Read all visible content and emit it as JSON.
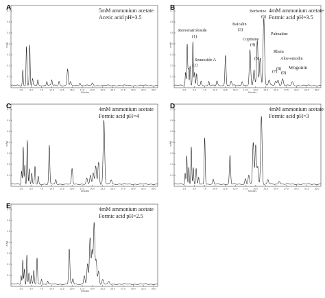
{
  "chart_data": [
    {
      "type": "line",
      "panel": "A",
      "conditions": [
        "5mM ammonium acetate",
        "Acetic acid pH=3.5"
      ],
      "xlabel": "Minutes",
      "ylabel": "mAU",
      "xlim": [
        0,
        36
      ],
      "ylim": [
        0,
        0.75
      ],
      "x_ticks": [
        "2.5",
        "5.0",
        "7.5",
        "10.0",
        "12.5",
        "15.0",
        "17.5",
        "20.0",
        "22.5",
        "25.0",
        "27.5",
        "30.0",
        "32.5",
        "35.0"
      ],
      "y_ticks": [
        "0.1",
        "0.2",
        "0.3",
        "0.4",
        "0.5",
        "0.6",
        "0.7"
      ],
      "peaks": [
        {
          "rt": 2.9,
          "h": 0.14
        },
        {
          "rt": 3.8,
          "h": 0.36
        },
        {
          "rt": 4.6,
          "h": 0.37
        },
        {
          "rt": 5.3,
          "h": 0.06
        },
        {
          "rt": 6.6,
          "h": 0.05
        },
        {
          "rt": 8.8,
          "h": 0.04
        },
        {
          "rt": 10.0,
          "h": 0.05
        },
        {
          "rt": 11.8,
          "h": 0.04
        },
        {
          "rt": 13.9,
          "h": 0.15
        },
        {
          "rt": 14.6,
          "h": 0.03
        },
        {
          "rt": 16.9,
          "h": 0.025
        },
        {
          "rt": 20.0,
          "h": 0.02
        }
      ],
      "peak_labels": []
    },
    {
      "type": "line",
      "panel": "B",
      "conditions": [
        "4mM ammonium acetate",
        "Formic acid pH=3.5"
      ],
      "xlabel": "Minutes",
      "ylabel": "mAU",
      "xlim": [
        0,
        36
      ],
      "ylim": [
        0,
        0.75
      ],
      "x_ticks": [
        "2.5",
        "5.0",
        "7.5",
        "10.0",
        "12.5",
        "15.0",
        "17.5",
        "20.0",
        "22.5",
        "25.0",
        "27.5",
        "30.0",
        "32.5",
        "35.0"
      ],
      "y_ticks": [
        "0.1",
        "0.2",
        "0.3",
        "0.4",
        "0.5",
        "0.6",
        "0.7"
      ],
      "peaks": [
        {
          "rt": 2.8,
          "h": 0.12
        },
        {
          "rt": 3.2,
          "h": 0.38
        },
        {
          "rt": 3.5,
          "h": 0.16
        },
        {
          "rt": 3.9,
          "h": 0.18
        },
        {
          "rt": 4.6,
          "h": 0.4
        },
        {
          "rt": 5.0,
          "h": 0.12
        },
        {
          "rt": 5.5,
          "h": 0.1
        },
        {
          "rt": 6.6,
          "h": 0.04
        },
        {
          "rt": 8.5,
          "h": 0.04
        },
        {
          "rt": 10.5,
          "h": 0.04
        },
        {
          "rt": 12.6,
          "h": 0.28
        },
        {
          "rt": 14.0,
          "h": 0.04
        },
        {
          "rt": 16.7,
          "h": 0.04
        },
        {
          "rt": 18.6,
          "h": 0.32
        },
        {
          "rt": 19.6,
          "h": 0.14
        },
        {
          "rt": 20.4,
          "h": 0.41
        },
        {
          "rt": 21.1,
          "h": 0.25
        },
        {
          "rt": 22.0,
          "h": 0.62
        },
        {
          "rt": 23.3,
          "h": 0.05
        },
        {
          "rt": 24.9,
          "h": 0.04
        },
        {
          "rt": 25.5,
          "h": 0.05
        },
        {
          "rt": 26.6,
          "h": 0.06
        },
        {
          "rt": 29.0,
          "h": 0.03
        }
      ],
      "peak_labels": [
        {
          "name": "Resveratroloside",
          "num": "(1)"
        },
        {
          "name": "Sennoside A",
          "num": "(2)"
        },
        {
          "name": "Baicalin",
          "num": "(3)"
        },
        {
          "name": "Coptisine",
          "num": "(4)"
        },
        {
          "name": "",
          "num": "(5)"
        },
        {
          "name": "Berberine",
          "num": "(6)"
        },
        {
          "name": "Palmatine",
          "num": ""
        },
        {
          "name": "Rhein",
          "num": "(7)"
        },
        {
          "name": "Aloe-emodin",
          "num": "(8)"
        },
        {
          "name": "Wogonin",
          "num": "(9)"
        }
      ]
    },
    {
      "type": "line",
      "panel": "C",
      "conditions": [
        "4mM ammonium acetate",
        "Formic acid pH=4"
      ],
      "xlabel": "Minutes",
      "ylabel": "mAU",
      "xlim": [
        0,
        36
      ],
      "ylim": [
        0,
        0.75
      ],
      "x_ticks": [
        "2.5",
        "5.0",
        "7.5",
        "10.0",
        "12.5",
        "15.0",
        "17.5",
        "20.0",
        "22.5",
        "25.0",
        "27.5",
        "30.0",
        "32.5",
        "35.0"
      ],
      "y_ticks": [
        "0.1",
        "0.2",
        "0.3",
        "0.4",
        "0.5",
        "0.6",
        "0.7"
      ],
      "peaks": [
        {
          "rt": 2.6,
          "h": 0.12
        },
        {
          "rt": 3.0,
          "h": 0.34
        },
        {
          "rt": 3.4,
          "h": 0.18
        },
        {
          "rt": 4.0,
          "h": 0.4
        },
        {
          "rt": 4.5,
          "h": 0.14
        },
        {
          "rt": 5.1,
          "h": 0.1
        },
        {
          "rt": 5.9,
          "h": 0.16
        },
        {
          "rt": 6.7,
          "h": 0.07
        },
        {
          "rt": 9.4,
          "h": 0.35
        },
        {
          "rt": 11.0,
          "h": 0.04
        },
        {
          "rt": 15.0,
          "h": 0.14
        },
        {
          "rt": 18.6,
          "h": 0.05
        },
        {
          "rt": 19.5,
          "h": 0.08
        },
        {
          "rt": 20.2,
          "h": 0.1
        },
        {
          "rt": 20.8,
          "h": 0.17
        },
        {
          "rt": 21.5,
          "h": 0.2
        },
        {
          "rt": 22.8,
          "h": 0.58
        },
        {
          "rt": 24.6,
          "h": 0.04
        }
      ],
      "peak_labels": []
    },
    {
      "type": "line",
      "panel": "D",
      "conditions": [
        "4mM ammonium acetate",
        "Formic acid pH=3"
      ],
      "xlabel": "Minutes",
      "ylabel": "mAU",
      "xlim": [
        0,
        36
      ],
      "ylim": [
        0,
        0.75
      ],
      "x_ticks": [
        "2.5",
        "5.0",
        "7.5",
        "10.0",
        "12.5",
        "15.0",
        "17.5",
        "20.0",
        "22.5",
        "25.0",
        "27.5",
        "30.0",
        "32.5",
        "35.0"
      ],
      "y_ticks": [
        "0.1",
        "0.2",
        "0.3",
        "0.4",
        "0.5",
        "0.6",
        "0.7"
      ],
      "peaks": [
        {
          "rt": 2.7,
          "h": 0.1
        },
        {
          "rt": 3.1,
          "h": 0.26
        },
        {
          "rt": 3.6,
          "h": 0.16
        },
        {
          "rt": 4.2,
          "h": 0.34
        },
        {
          "rt": 4.7,
          "h": 0.15
        },
        {
          "rt": 5.4,
          "h": 0.14
        },
        {
          "rt": 6.0,
          "h": 0.06
        },
        {
          "rt": 7.5,
          "h": 0.43
        },
        {
          "rt": 9.6,
          "h": 0.04
        },
        {
          "rt": 13.7,
          "h": 0.26
        },
        {
          "rt": 17.5,
          "h": 0.05
        },
        {
          "rt": 18.3,
          "h": 0.08
        },
        {
          "rt": 19.4,
          "h": 0.38
        },
        {
          "rt": 20.0,
          "h": 0.35
        },
        {
          "rt": 20.5,
          "h": 0.16
        },
        {
          "rt": 21.4,
          "h": 0.62
        },
        {
          "rt": 23.0,
          "h": 0.04
        },
        {
          "rt": 25.8,
          "h": 0.03
        }
      ],
      "peak_labels": []
    },
    {
      "type": "line",
      "panel": "E",
      "conditions": [
        "4mM ammonium acetate",
        "Formic acid pH=2.5"
      ],
      "xlabel": "Minutes",
      "ylabel": "mAU",
      "xlim": [
        0,
        36
      ],
      "ylim": [
        0,
        0.75
      ],
      "x_ticks": [
        "2.5",
        "5.0",
        "7.5",
        "10.0",
        "12.5",
        "15.0",
        "17.5",
        "20.0",
        "22.5",
        "25.0",
        "27.5",
        "30.0",
        "32.5",
        "35.0"
      ],
      "y_ticks": [
        "0.1",
        "0.2",
        "0.3",
        "0.4",
        "0.5",
        "0.6",
        "0.7"
      ],
      "peaks": [
        {
          "rt": 2.5,
          "h": 0.08
        },
        {
          "rt": 2.9,
          "h": 0.22
        },
        {
          "rt": 3.3,
          "h": 0.14
        },
        {
          "rt": 3.9,
          "h": 0.27
        },
        {
          "rt": 4.4,
          "h": 0.1
        },
        {
          "rt": 5.0,
          "h": 0.08
        },
        {
          "rt": 5.6,
          "h": 0.12
        },
        {
          "rt": 6.4,
          "h": 0.24
        },
        {
          "rt": 7.5,
          "h": 0.05
        },
        {
          "rt": 9.0,
          "h": 0.03
        },
        {
          "rt": 14.3,
          "h": 0.32
        },
        {
          "rt": 15.2,
          "h": 0.05
        },
        {
          "rt": 18.0,
          "h": 0.08
        },
        {
          "rt": 18.8,
          "h": 0.18
        },
        {
          "rt": 19.4,
          "h": 0.42
        },
        {
          "rt": 19.9,
          "h": 0.3
        },
        {
          "rt": 20.4,
          "h": 0.56
        },
        {
          "rt": 20.9,
          "h": 0.22
        },
        {
          "rt": 21.5,
          "h": 0.12
        },
        {
          "rt": 22.5,
          "h": 0.04
        },
        {
          "rt": 24.0,
          "h": 0.02
        }
      ],
      "peak_labels": []
    }
  ]
}
